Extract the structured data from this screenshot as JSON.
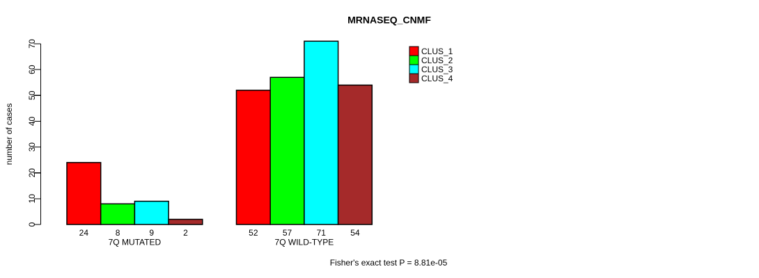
{
  "chart_data": {
    "type": "bar",
    "title": "MRNASEQ_CNMF",
    "xlabel": "",
    "ylabel": "number of cases",
    "ylim": [
      0,
      70
    ],
    "yticks": [
      0,
      10,
      20,
      30,
      40,
      50,
      60,
      70
    ],
    "grid": false,
    "legend_position": "top-right",
    "bar_value_labels": true,
    "categories": [
      "7Q MUTATED",
      "7Q WILD-TYPE"
    ],
    "series": [
      {
        "name": "CLUS_1",
        "color": "#FF0000",
        "values": [
          24,
          52
        ]
      },
      {
        "name": "CLUS_2",
        "color": "#00FF00",
        "values": [
          8,
          57
        ]
      },
      {
        "name": "CLUS_3",
        "color": "#00FFFF",
        "values": [
          9,
          71
        ]
      },
      {
        "name": "CLUS_4",
        "color": "#A52A2A",
        "values": [
          2,
          54
        ]
      }
    ],
    "annotation": "Fisher's exact test P = 8.81e-05"
  },
  "colors": {
    "axis": "#000000",
    "bar_border": "#000000",
    "background": "#FFFFFF"
  }
}
